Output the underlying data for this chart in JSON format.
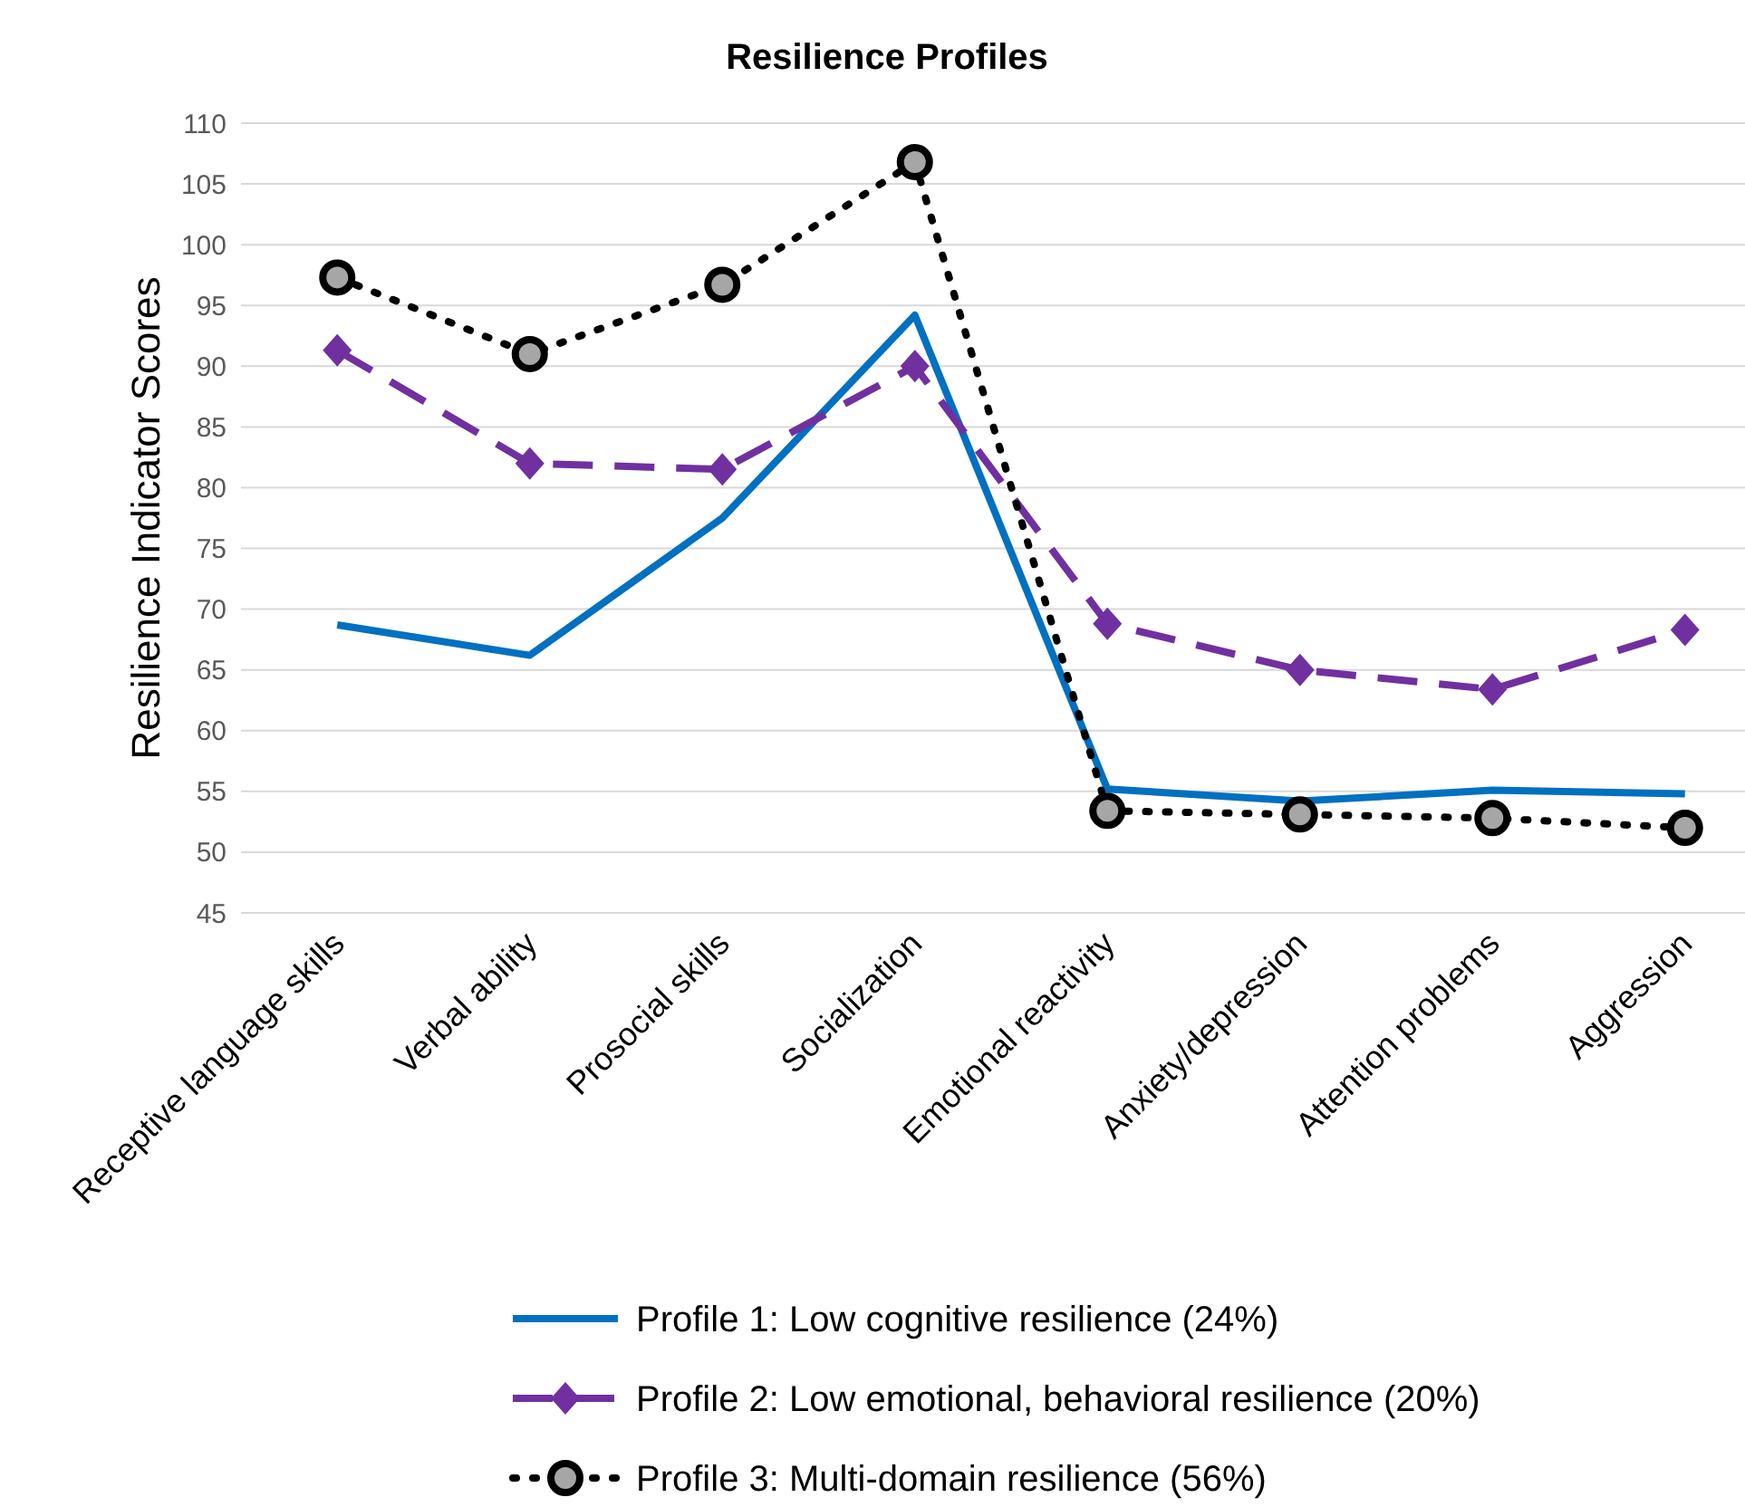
{
  "chart_data": {
    "type": "line",
    "title": "Resilience Profiles",
    "ylabel": "Resilience Indicator  Scores",
    "categories": [
      "Receptive language skills",
      "Verbal ability",
      "Prosocial skills",
      "Socialization",
      "Emotional reactivity",
      "Anxiety/depression",
      "Attention problems",
      "Aggression"
    ],
    "series": [
      {
        "name": "Profile 1: Low cognitive resilience (24%)",
        "color": "#0070c0",
        "values": [
          68.7,
          66.2,
          77.5,
          94.2,
          55.2,
          54.2,
          55.1,
          54.8
        ],
        "marker": "none",
        "line_style": "solid"
      },
      {
        "name": "Profile 2: Low emotional, behavioral resilience (20%)",
        "color": "#7030a0",
        "values": [
          91.3,
          82.0,
          81.5,
          90.0,
          68.8,
          65.0,
          63.4,
          68.3
        ],
        "marker": "diamond",
        "line_style": "dashed"
      },
      {
        "name": "Profile 3: Multi-domain resilience (56%)",
        "color": "#000000",
        "values": [
          97.3,
          91.0,
          96.7,
          106.8,
          53.4,
          53.1,
          52.8,
          52.0
        ],
        "marker": "circle",
        "line_style": "dotted"
      }
    ],
    "ylim": [
      45,
      110
    ],
    "yticks": [
      45,
      50,
      55,
      60,
      65,
      70,
      75,
      80,
      85,
      90,
      95,
      100,
      105,
      110
    ],
    "grid": "y",
    "legend": "bottom"
  }
}
